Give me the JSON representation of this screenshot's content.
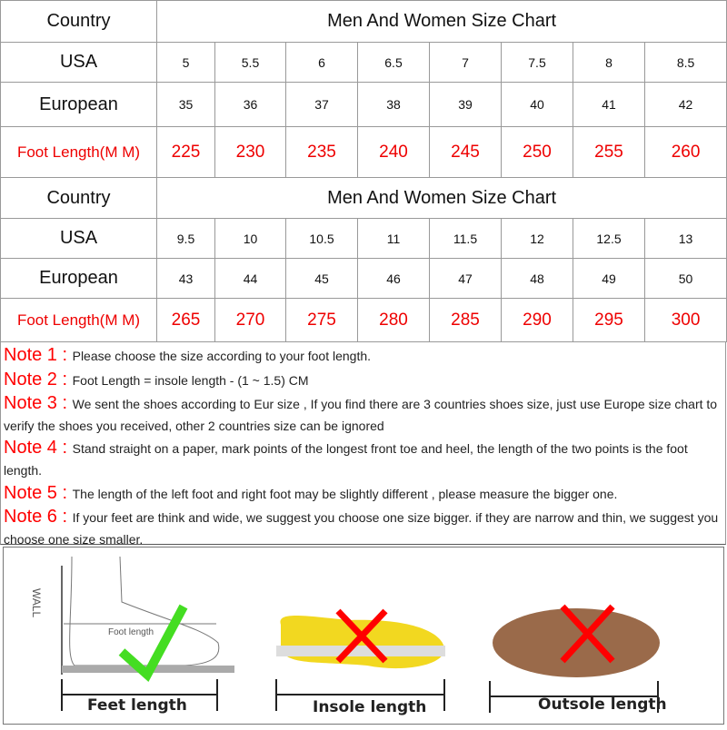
{
  "tables": [
    {
      "header": {
        "country": "Country",
        "title": "Men And Women Size Chart"
      },
      "usa": {
        "label": "USA",
        "values": [
          "5",
          "5.5",
          "6",
          "6.5",
          "7",
          "7.5",
          "8",
          "8.5"
        ]
      },
      "eu": {
        "label": "European",
        "values": [
          "35",
          "36",
          "37",
          "38",
          "39",
          "40",
          "41",
          "42"
        ]
      },
      "foot": {
        "label": "Foot Length(M M)",
        "values": [
          "225",
          "230",
          "235",
          "240",
          "245",
          "250",
          "255",
          "260"
        ]
      }
    },
    {
      "header": {
        "country": "Country",
        "title": "Men And Women Size Chart"
      },
      "usa": {
        "label": "USA",
        "values": [
          "9.5",
          "10",
          "10.5",
          "11",
          "11.5",
          "12",
          "12.5",
          "13"
        ]
      },
      "eu": {
        "label": "European",
        "values": [
          "43",
          "44",
          "45",
          "46",
          "47",
          "48",
          "49",
          "50"
        ]
      },
      "foot": {
        "label": "Foot Length(M M)",
        "values": [
          "265",
          "270",
          "275",
          "280",
          "285",
          "290",
          "295",
          "300"
        ]
      }
    }
  ],
  "notes": [
    {
      "label": "Note 1 : ",
      "text": "Please choose the size according to your foot length."
    },
    {
      "label": "Note 2 : ",
      "text": "Foot Length = insole length  -  (1 ~ 1.5) CM"
    },
    {
      "label": "Note 3 : ",
      "text": "  We sent the shoes according to Eur size , If you find there are 3 countries shoes size, just use Europe size chart to verify the shoes you received, other 2 countries size can be ignored"
    },
    {
      "label": "Note 4 : ",
      "text": "  Stand straight on a paper, mark points of the longest front toe and heel, the length of the two points is the foot length."
    },
    {
      "label": "Note 5 : ",
      "text": "The length of the left foot and right foot may be slightly different , please measure the bigger one."
    },
    {
      "label": "Note 6 : ",
      "text": "If your feet are think and wide, we suggest you choose one size bigger. if they are narrow and thin, we suggest you choose one size smaller."
    }
  ],
  "illustration": {
    "wall": "WALL",
    "foot_length": "Foot length",
    "captions": [
      "Feet length",
      "Insole length",
      "Outsole length"
    ],
    "marks": [
      "check",
      "cross",
      "cross"
    ]
  },
  "colors": {
    "red": "#ff0000",
    "green": "#44dd22",
    "insole": "#f2d820",
    "outsole": "#9a6a4a"
  }
}
